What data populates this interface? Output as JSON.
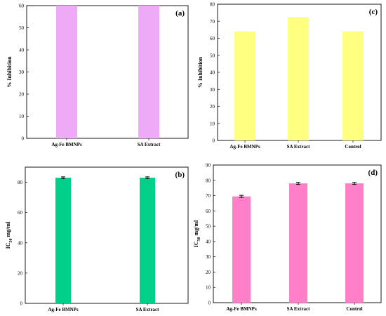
{
  "chart_data": [
    {
      "panel": "(a)",
      "type": "bar",
      "ylabel": "% Inhibition",
      "ylim": [
        0,
        60
      ],
      "yticks": [
        0,
        10,
        20,
        30,
        40,
        50,
        60
      ],
      "categories": [
        "Ag-Fe BMNPs",
        "SA Extract"
      ],
      "values": [
        60,
        60
      ],
      "color": "#EEAAF6",
      "error_bars": false
    },
    {
      "panel": "(b)",
      "type": "bar",
      "ylabel": "IC50 mg/ml",
      "ylim": [
        0,
        90
      ],
      "yticks": [
        0,
        20,
        40,
        60,
        80
      ],
      "categories": [
        "Ag-Fe BMNPs",
        "SA Extract"
      ],
      "values": [
        83,
        83
      ],
      "errors": [
        0.3,
        0.3
      ],
      "color": "#00D08A",
      "error_bars": true
    },
    {
      "panel": "(c)",
      "type": "bar",
      "ylabel": "% Inhibition",
      "ylim": [
        0,
        80
      ],
      "yticks": [
        0,
        10,
        20,
        30,
        40,
        50,
        60,
        70,
        80
      ],
      "categories": [
        "Ag-Fe BMNPs",
        "SA Extract",
        "Control"
      ],
      "values": [
        64,
        72.5,
        64
      ],
      "color": "#FFFF80",
      "error_bars": false
    },
    {
      "panel": "(d)",
      "type": "bar",
      "ylabel": "IC50 mg/ml",
      "ylim": [
        0,
        90
      ],
      "yticks": [
        0,
        10,
        20,
        30,
        40,
        50,
        60,
        70,
        80,
        90
      ],
      "categories": [
        "Ag-Fe BMNPs",
        "SA Extract",
        "Control"
      ],
      "values": [
        69.5,
        78,
        78
      ],
      "errors": [
        0.4,
        0.4,
        0.4
      ],
      "color": "#FF80C8",
      "error_bars": true
    }
  ]
}
